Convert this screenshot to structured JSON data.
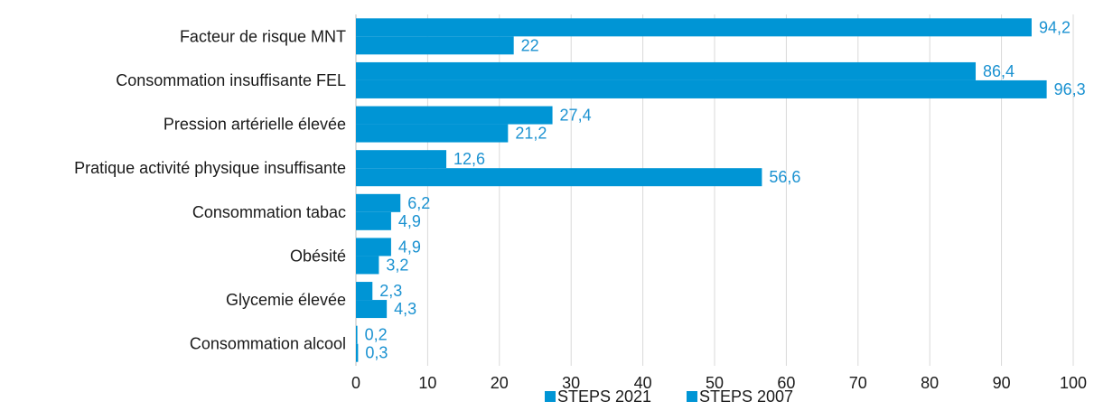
{
  "chart_data": {
    "type": "bar",
    "orientation": "horizontal",
    "title": "",
    "xlabel": "",
    "ylabel": "",
    "xlim": [
      0,
      100
    ],
    "x_ticks": [
      0,
      10,
      20,
      30,
      40,
      50,
      60,
      70,
      80,
      90,
      100
    ],
    "grid": true,
    "legend_position": "bottom",
    "categories": [
      "Facteur de risque MNT",
      "Consommation insuffisante FEL",
      "Pression artérielle élevée",
      "Pratique activité physique insuffisante",
      "Consommation tabac",
      "Obésité",
      "Glycemie élevée",
      "Consommation alcool"
    ],
    "series": [
      {
        "name": "STEPS 2021",
        "color": "#0095d5",
        "values": [
          94.2,
          86.4,
          27.4,
          12.6,
          6.2,
          4.9,
          2.3,
          0.2
        ],
        "labels": [
          "94,2",
          "86,4",
          "27,4",
          "12,6",
          "6,2",
          "4,9",
          "2,3",
          "0,2"
        ]
      },
      {
        "name": "STEPS 2007",
        "color": "#0095d5",
        "values": [
          22,
          96.3,
          21.2,
          56.6,
          4.9,
          3.2,
          4.3,
          0.3
        ],
        "labels": [
          "22",
          "96,3",
          "21,2",
          "56,6",
          "4,9",
          "3,2",
          "4,3",
          "0,3"
        ]
      }
    ],
    "data_label_color": "#1b92d1"
  }
}
